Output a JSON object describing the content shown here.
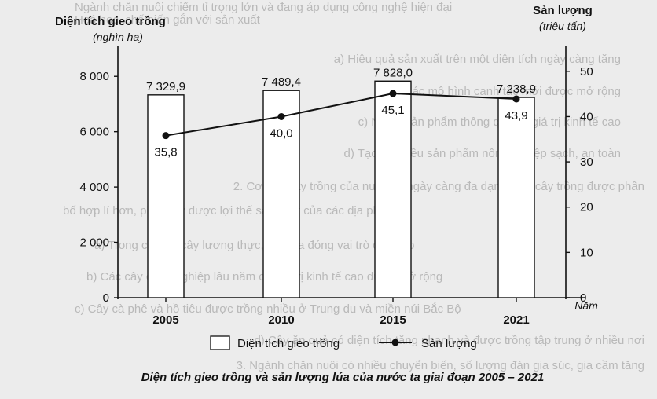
{
  "chart_data": {
    "type": "bar+line",
    "categories": [
      "2005",
      "2010",
      "2015",
      "2021"
    ],
    "series": [
      {
        "name": "Diện tích gieo trồng",
        "kind": "bar",
        "axis": "left",
        "values": [
          7329.9,
          7489.4,
          7828.0,
          7238.9
        ],
        "labels": [
          "7 329,9",
          "7 489,4",
          "7 828,0",
          "7 238,9"
        ]
      },
      {
        "name": "Sản lượng",
        "kind": "line",
        "axis": "right",
        "values": [
          35.8,
          40.0,
          45.1,
          43.9
        ],
        "labels": [
          "35,8",
          "40,0",
          "45,1",
          "43,9"
        ]
      }
    ],
    "left_axis": {
      "title": "Diện tích gieo trồng",
      "unit": "(nghìn ha)",
      "ylim": [
        0,
        9000
      ],
      "ticks": [
        0,
        2000,
        4000,
        6000,
        8000
      ],
      "tick_labels": [
        "0",
        "2 000",
        "4 000",
        "6 000",
        "8 000"
      ]
    },
    "right_axis": {
      "title": "Sản lượng",
      "unit": "(triệu tấn)",
      "ylim": [
        0,
        55
      ],
      "ticks": [
        0,
        10,
        20,
        30,
        40,
        50
      ],
      "tick_labels": [
        "0",
        "10",
        "20",
        "30",
        "40",
        "50"
      ]
    },
    "xlabel": "Năm",
    "caption": "Diện tích gieo trồng và sản lượng lúa của nước ta giai đoạn 2005 – 2021",
    "legend_position": "bottom",
    "grid": false,
    "colors": {
      "bar_fill": "#ffffff",
      "stroke": "#111111",
      "line": "#111111"
    }
  },
  "background_text": [
    "Ngành chăn nuôi chiếm tỉ trọng lớn và đang áp dụng công nghệ hiện đại",
    "Hoá học, chế biến gắn với sản xuất",
    "a) Hiệu quả sản xuất trên một diện tích ngày càng tăng",
    "b) Các mô hình canh tác mới được mở rộng",
    "c) Nhiều sản phẩm thông qua có giá trị kinh tế cao",
    "d) Tạo ra nhiều sản phẩm nông nghiệp sạch, an toàn",
    "2. Cơ cấu cây trồng của nước ta ngày càng đa dạng, các cây trồng được phân",
    "bố hợp lí hơn, phát huy được lợi thế sản xuất của các địa phương",
    "a) Trong cơ cấu cây lương thực, cây lúa đóng vai trò chủ đạo",
    "b) Các cây công nghiệp lâu năm có giá trị kinh tế cao được mở rộng",
    "c) Cây cà phê và hồ tiêu được trồng nhiều ở Trung du và miền núi Bắc Bộ",
    "d) Cây ăn quả có diện tích tăng nhanh và được trồng tập trung ở nhiều nơi",
    "3. Ngành chăn nuôi có nhiều chuyển biến, số lượng đàn gia súc, gia cầm tăng"
  ]
}
